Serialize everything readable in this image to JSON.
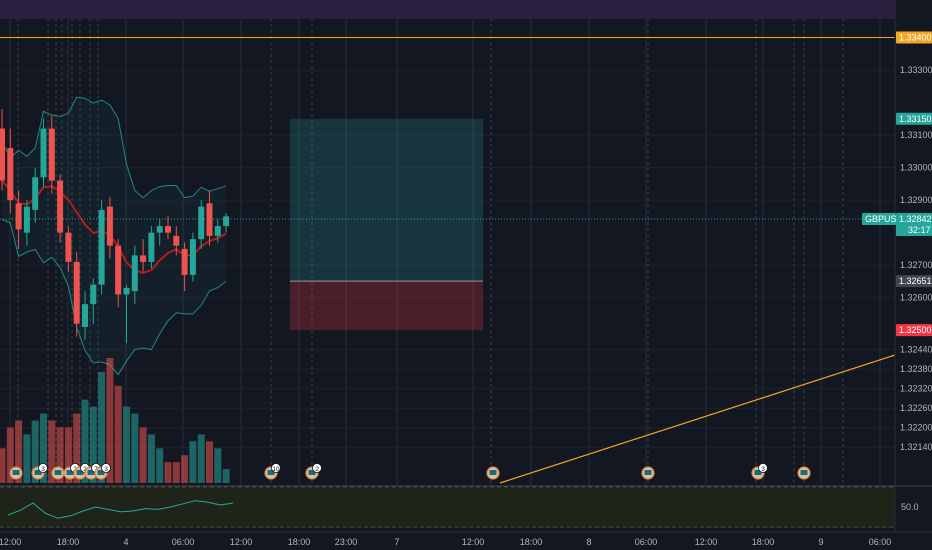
{
  "chart_data": {
    "type": "candlestick",
    "symbol": "GBPUSD",
    "price_range": [
      1.3207,
      1.335
    ],
    "y_ticks": [
      "1.33400",
      "1.33300",
      "1.33100",
      "1.33000",
      "1.32900",
      "1.32700",
      "1.32600",
      "1.32440",
      "1.32380",
      "1.32320",
      "1.32260",
      "1.32200",
      "1.32140"
    ],
    "y_tick_values": [
      1.334,
      1.333,
      1.331,
      1.33,
      1.329,
      1.327,
      1.326,
      1.3244,
      1.3238,
      1.3232,
      1.3226,
      1.322,
      1.3214
    ],
    "x_ticks": [
      "12:00",
      "18:00",
      "4",
      "06:00",
      "12:00",
      "18:00",
      "23:00",
      "7",
      "12:00",
      "18:00",
      "8",
      "06:00",
      "12:00",
      "18:00",
      "9",
      "06:00"
    ],
    "current_price": {
      "symbol": "GBPUSD",
      "price": "1.32842",
      "value": 1.32842,
      "countdown": "32:17",
      "color": "#26a69a"
    },
    "price_labels": [
      {
        "text": "1.33400",
        "value": 1.334,
        "color": "#f5a623"
      },
      {
        "text": "1.33150",
        "value": 1.3315,
        "color": "#26a69a"
      },
      {
        "text": "1.32651",
        "value": 1.32651,
        "color": "#434651"
      },
      {
        "text": "1.32500",
        "value": 1.325,
        "color": "#f23645"
      }
    ],
    "position": {
      "target": 1.3315,
      "entry": 1.32651,
      "stop": 1.325,
      "profit_color": "#26a69a",
      "loss_color": "#f23645"
    },
    "candles": [
      {
        "o": 1.3312,
        "h": 1.3318,
        "l": 1.3293,
        "c": 1.3296
      },
      {
        "o": 1.3306,
        "h": 1.3312,
        "l": 1.3286,
        "c": 1.329
      },
      {
        "o": 1.3289,
        "h": 1.3293,
        "l": 1.3275,
        "c": 1.3281
      },
      {
        "o": 1.328,
        "h": 1.329,
        "l": 1.3276,
        "c": 1.3288
      },
      {
        "o": 1.3287,
        "h": 1.33,
        "l": 1.3283,
        "c": 1.3297
      },
      {
        "o": 1.3297,
        "h": 1.3315,
        "l": 1.3294,
        "c": 1.3312
      },
      {
        "o": 1.3312,
        "h": 1.3316,
        "l": 1.3292,
        "c": 1.3296
      },
      {
        "o": 1.3296,
        "h": 1.3298,
        "l": 1.3277,
        "c": 1.328
      },
      {
        "o": 1.328,
        "h": 1.3282,
        "l": 1.3268,
        "c": 1.3271
      },
      {
        "o": 1.3271,
        "h": 1.3274,
        "l": 1.3248,
        "c": 1.3252
      },
      {
        "o": 1.3251,
        "h": 1.3262,
        "l": 1.3247,
        "c": 1.3258
      },
      {
        "o": 1.3258,
        "h": 1.3266,
        "l": 1.3252,
        "c": 1.3264
      },
      {
        "o": 1.3264,
        "h": 1.329,
        "l": 1.3261,
        "c": 1.3287
      },
      {
        "o": 1.3288,
        "h": 1.3291,
        "l": 1.3272,
        "c": 1.3276
      },
      {
        "o": 1.3276,
        "h": 1.3278,
        "l": 1.3257,
        "c": 1.3261
      },
      {
        "o": 1.3261,
        "h": 1.3264,
        "l": 1.3246,
        "c": 1.3263
      },
      {
        "o": 1.3262,
        "h": 1.3276,
        "l": 1.3258,
        "c": 1.3273
      },
      {
        "o": 1.3273,
        "h": 1.3278,
        "l": 1.3268,
        "c": 1.3271
      },
      {
        "o": 1.3271,
        "h": 1.3282,
        "l": 1.3269,
        "c": 1.328
      },
      {
        "o": 1.328,
        "h": 1.3284,
        "l": 1.3276,
        "c": 1.3282
      },
      {
        "o": 1.3282,
        "h": 1.3285,
        "l": 1.3278,
        "c": 1.328
      },
      {
        "o": 1.3279,
        "h": 1.3282,
        "l": 1.3273,
        "c": 1.3276
      },
      {
        "o": 1.3275,
        "h": 1.3277,
        "l": 1.3262,
        "c": 1.3267
      },
      {
        "o": 1.3267,
        "h": 1.328,
        "l": 1.3265,
        "c": 1.3278
      },
      {
        "o": 1.3278,
        "h": 1.329,
        "l": 1.3275,
        "c": 1.3288
      },
      {
        "o": 1.3289,
        "h": 1.3293,
        "l": 1.3276,
        "c": 1.3279
      },
      {
        "o": 1.3279,
        "h": 1.3284,
        "l": 1.3277,
        "c": 1.3282
      },
      {
        "o": 1.3282,
        "h": 1.3286,
        "l": 1.328,
        "c": 1.3285
      }
    ],
    "volumes": [
      5,
      8,
      9,
      7,
      9,
      10,
      9,
      8,
      8,
      10,
      12,
      11,
      16,
      18,
      14,
      11,
      10,
      8,
      7,
      5,
      3,
      3,
      4,
      6,
      7,
      6,
      5,
      2
    ],
    "oscillator": {
      "label": "50.0",
      "values": [
        0.3,
        0.42,
        0.6,
        0.34,
        0.22,
        0.28,
        0.4,
        0.5,
        0.44,
        0.38,
        0.4,
        0.46,
        0.44,
        0.5,
        0.58,
        0.66,
        0.62,
        0.55,
        0.6
      ]
    },
    "grid": true
  },
  "event_markers": [
    {
      "label": ""
    },
    {
      "label": "3"
    },
    {
      "label": ""
    },
    {
      "label": "2"
    },
    {
      "label": "2"
    },
    {
      "label": "7"
    },
    {
      "label": "3"
    },
    {
      "label": "10"
    },
    {
      "label": "2"
    },
    {
      "label": ""
    },
    {
      "label": ""
    },
    {
      "label": "3"
    },
    {
      "label": ""
    }
  ],
  "colors": {
    "up": "#26a69a",
    "down": "#ef5350",
    "background": "#131722",
    "trendline": "#f5a623",
    "bands": "#26a69a",
    "ma": "#b71c1c"
  }
}
